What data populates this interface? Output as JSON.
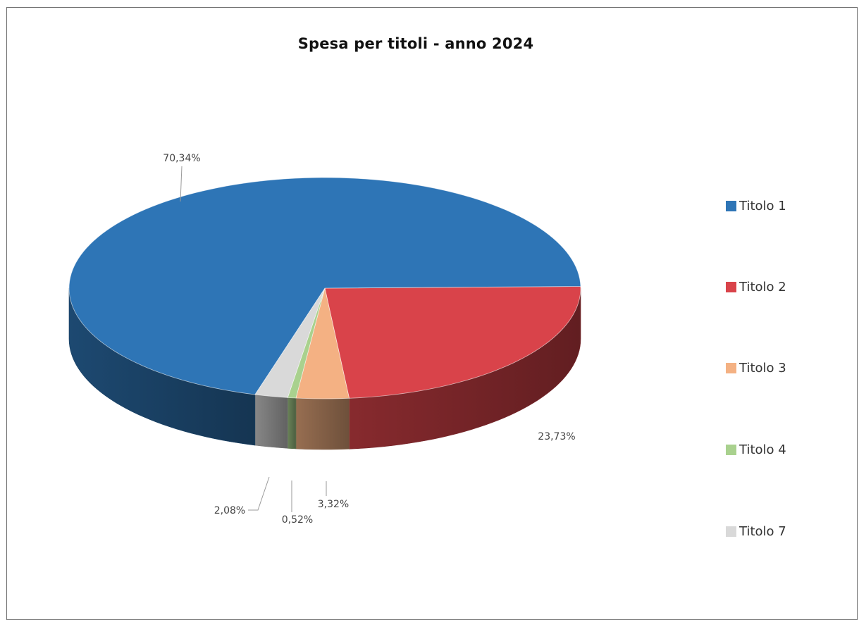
{
  "chart_data": {
    "type": "pie",
    "title": "Spesa per titoli - anno 2024",
    "labels": [
      "Titolo 1",
      "Titolo 2",
      "Titolo 3",
      "Titolo 4",
      "Titolo 7"
    ],
    "values": [
      70.34,
      23.73,
      3.32,
      0.52,
      2.08
    ],
    "value_labels": [
      "70,34%",
      "23,73%",
      "3,32%",
      "0,52%",
      "2,08%"
    ],
    "colors": [
      "#2e75b6",
      "#d9434a",
      "#f4b183",
      "#a9d18e",
      "#d9d9d9"
    ],
    "style": "3d",
    "legend_position": "right"
  }
}
